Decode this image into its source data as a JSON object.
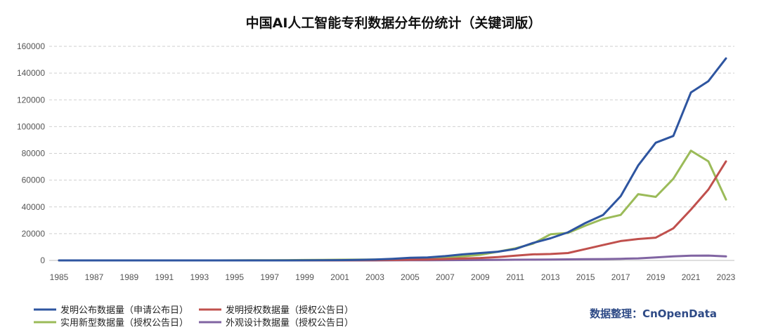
{
  "chart_data": {
    "type": "line",
    "title": "中国AI人工智能专利数据分年份统计（关键词版）",
    "x": [
      1985,
      1986,
      1987,
      1988,
      1989,
      1990,
      1991,
      1992,
      1993,
      1994,
      1995,
      1996,
      1997,
      1998,
      1999,
      2000,
      2001,
      2002,
      2003,
      2004,
      2005,
      2006,
      2007,
      2008,
      2009,
      2010,
      2011,
      2012,
      2013,
      2014,
      2015,
      2016,
      2017,
      2018,
      2019,
      2020,
      2021,
      2022,
      2023
    ],
    "x_tick_labels": [
      "1985",
      "1987",
      "1989",
      "1991",
      "1993",
      "1995",
      "1997",
      "1999",
      "2001",
      "2003",
      "2005",
      "2007",
      "2009",
      "2011",
      "2013",
      "2015",
      "2017",
      "2019",
      "2021",
      "2023"
    ],
    "y_tick_labels": [
      "0",
      "20000",
      "40000",
      "60000",
      "80000",
      "100000",
      "120000",
      "140000",
      "160000"
    ],
    "ylim": [
      0,
      160000
    ],
    "grid": true,
    "legend_position": "bottom-left",
    "series": [
      {
        "name": "发明公布数据量（申请公布日）",
        "color": "#2e55a0",
        "values": [
          0,
          0,
          0,
          0,
          0,
          0,
          0,
          0,
          0,
          0,
          0,
          0,
          0,
          0,
          50,
          100,
          200,
          400,
          700,
          1200,
          2000,
          2200,
          3200,
          4500,
          5500,
          6500,
          8500,
          13000,
          16500,
          21000,
          28000,
          34000,
          48000,
          71000,
          88000,
          93000,
          125500,
          134000,
          151000
        ]
      },
      {
        "name": "发明授权数据量（授权公告日）",
        "color": "#c0504d",
        "values": [
          0,
          0,
          0,
          0,
          0,
          0,
          0,
          0,
          0,
          0,
          0,
          0,
          0,
          0,
          0,
          0,
          50,
          100,
          200,
          300,
          500,
          700,
          1000,
          1400,
          1800,
          2500,
          3500,
          4500,
          4800,
          5500,
          8500,
          11500,
          14500,
          16000,
          17000,
          24000,
          38000,
          53000,
          74000
        ]
      },
      {
        "name": "实用新型数据量（授权公告日）",
        "color": "#9bbb59",
        "values": [
          0,
          0,
          0,
          0,
          0,
          0,
          0,
          0,
          0,
          0,
          50,
          100,
          150,
          200,
          300,
          400,
          500,
          600,
          700,
          900,
          1200,
          1500,
          2200,
          3000,
          4200,
          6500,
          9000,
          12500,
          19500,
          20500,
          26000,
          31000,
          34000,
          49500,
          47500,
          61000,
          82000,
          74000,
          45500
        ]
      },
      {
        "name": "外观设计数据量（授权公告日）",
        "color": "#8064a2",
        "values": [
          0,
          0,
          0,
          0,
          0,
          0,
          0,
          0,
          0,
          0,
          0,
          0,
          0,
          0,
          0,
          0,
          0,
          0,
          0,
          50,
          100,
          150,
          200,
          250,
          300,
          400,
          500,
          600,
          700,
          800,
          900,
          1000,
          1200,
          1500,
          2200,
          3000,
          3500,
          3600,
          3000
        ]
      }
    ],
    "source_note": "数据整理：CnOpenData"
  }
}
